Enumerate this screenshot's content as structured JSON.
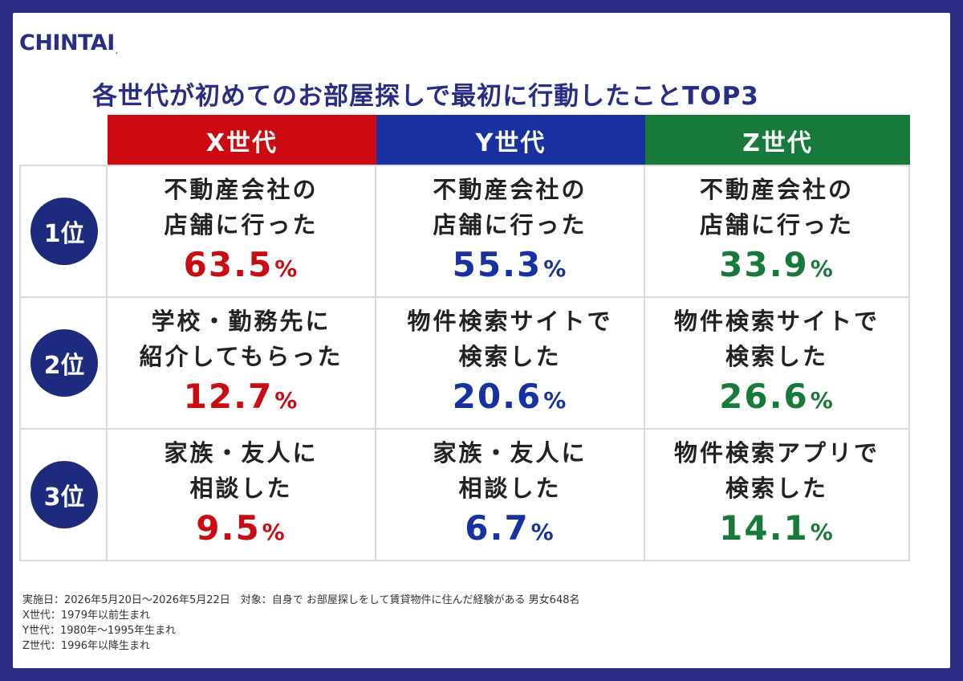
{
  "brand": {
    "logo_text": "CHINTAI",
    "logo_dot": "."
  },
  "title": "各世代が初めてのお部屋探しで最初に行動したことTOP3",
  "colors": {
    "x": "#cc0a12",
    "y": "#1732a0",
    "z": "#17793a",
    "rank_circle": "#1d2b7e",
    "frame": "#2a2d85"
  },
  "columns": [
    "X世代",
    "Y世代",
    "Z世代"
  ],
  "rows": [
    {
      "rank": "1位",
      "cells": [
        {
          "line1": "不動産会社の",
          "line2": "店舗に行った",
          "value": "63.5",
          "unit": "%"
        },
        {
          "line1": "不動産会社の",
          "line2": "店舗に行った",
          "value": "55.3",
          "unit": "%"
        },
        {
          "line1": "不動産会社の",
          "line2": "店舗に行った",
          "value": "33.9",
          "unit": "%"
        }
      ]
    },
    {
      "rank": "2位",
      "cells": [
        {
          "line1": "学校・勤務先に",
          "line2": "紹介してもらった",
          "value": "12.7",
          "unit": "%"
        },
        {
          "line1": "物件検索サイトで",
          "line2": "検索した",
          "value": "20.6",
          "unit": "%"
        },
        {
          "line1": "物件検索サイトで",
          "line2": "検索した",
          "value": "26.6",
          "unit": "%"
        }
      ]
    },
    {
      "rank": "3位",
      "cells": [
        {
          "line1": "家族・友人に",
          "line2": "相談した",
          "value": "9.5",
          "unit": "%"
        },
        {
          "line1": "家族・友人に",
          "line2": "相談した",
          "value": "6.7",
          "unit": "%"
        },
        {
          "line1": "物件検索アプリで",
          "line2": "検索した",
          "value": "14.1",
          "unit": "%"
        }
      ]
    }
  ],
  "notes": [
    "実施日：2026年5月20日〜2026年5月22日　対象：自身で お部屋探しをして賃貸物件に住んだ経験がある 男女648名",
    "X世代：1979年以前生まれ",
    "Y世代：1980年〜1995年生まれ",
    "Z世代：1996年以降生まれ"
  ]
}
